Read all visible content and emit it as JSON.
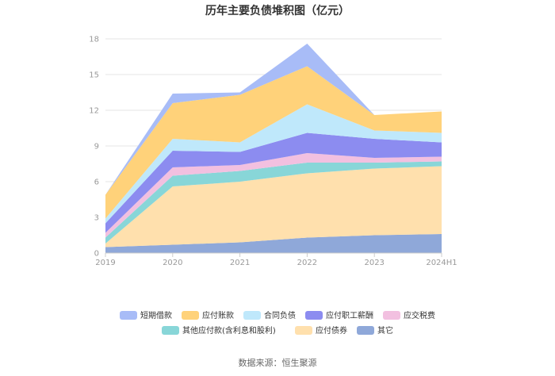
{
  "chart_data": {
    "type": "area",
    "stacked": true,
    "title": "历年主要负债堆积图（亿元）",
    "categories": [
      "2019",
      "2020",
      "2021",
      "2022",
      "2023",
      "2024H1"
    ],
    "y_ticks": [
      "0",
      "3",
      "6",
      "9",
      "12",
      "15",
      "18"
    ],
    "ylim": [
      0,
      18
    ],
    "grid": true,
    "legend_position": "bottom",
    "series": [
      {
        "name": "其它",
        "color": "#8fa8d9",
        "values": [
          0.5,
          0.7,
          0.9,
          1.3,
          1.5,
          1.6
        ]
      },
      {
        "name": "应付债券",
        "color": "#ffe0ad",
        "values": [
          0.3,
          4.9,
          5.1,
          5.4,
          5.6,
          5.7
        ]
      },
      {
        "name": "其他应付款(含利息和股利)",
        "color": "#88d6d8",
        "values": [
          0.5,
          0.9,
          0.9,
          0.9,
          0.5,
          0.4
        ]
      },
      {
        "name": "应交税费",
        "color": "#f2c0e0",
        "values": [
          0.4,
          0.7,
          0.5,
          0.8,
          0.4,
          0.4
        ]
      },
      {
        "name": "应付职工薪酬",
        "color": "#8c8cf0",
        "values": [
          0.8,
          1.4,
          1.1,
          1.7,
          1.6,
          1.2
        ]
      },
      {
        "name": "合同负债",
        "color": "#bfe8fb",
        "values": [
          0.4,
          1.0,
          0.8,
          2.4,
          0.7,
          0.8
        ]
      },
      {
        "name": "应付账款",
        "color": "#ffd27a",
        "values": [
          2.0,
          3.0,
          4.0,
          3.2,
          1.3,
          1.8
        ]
      },
      {
        "name": "短期借款",
        "color": "#a8bcf7",
        "values": [
          0.0,
          0.8,
          0.2,
          1.9,
          0.0,
          0.0
        ]
      }
    ],
    "legend_order": [
      "短期借款",
      "应付账款",
      "合同负债",
      "应付职工薪酬",
      "应交税费",
      "其他应付款(含利息和股利)",
      "应付债券",
      "其它"
    ]
  },
  "source_text": "数据来源：恒生聚源"
}
